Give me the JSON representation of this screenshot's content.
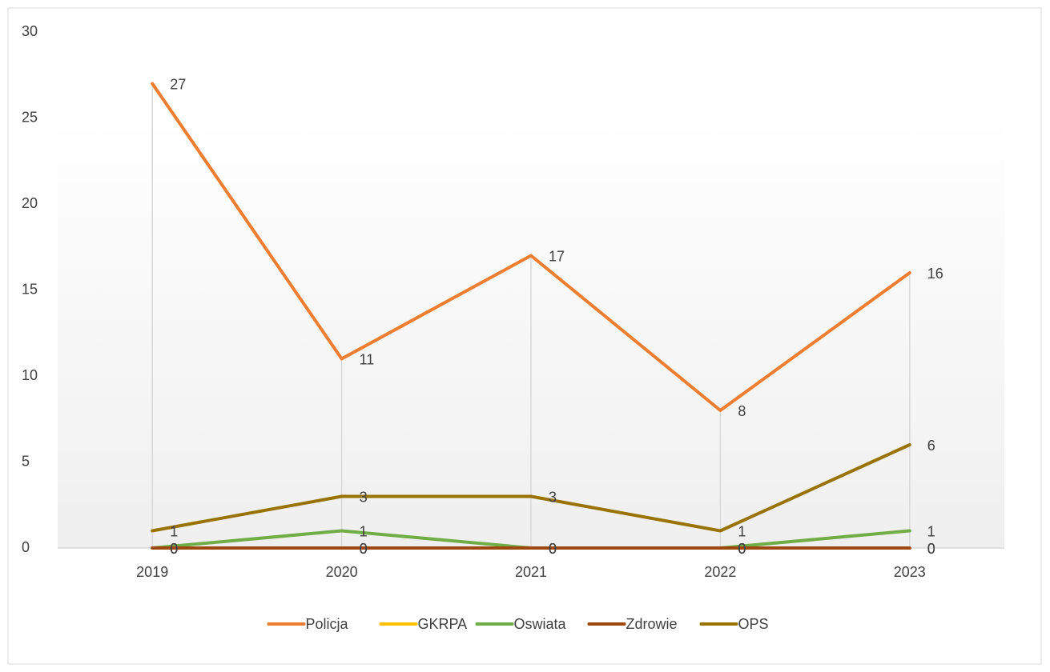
{
  "chart_data": {
    "type": "line",
    "categories": [
      "2019",
      "2020",
      "2021",
      "2022",
      "2023"
    ],
    "series": [
      {
        "name": "Policja",
        "color": "#ED7D31",
        "label_color": "#ED7D31",
        "values": [
          27,
          11,
          17,
          8,
          16
        ]
      },
      {
        "name": "GKRPA",
        "color": "#FFC000",
        "label_color": "#595959",
        "values": [
          0,
          0,
          0,
          0,
          0
        ]
      },
      {
        "name": "Oswiata",
        "color": "#70AD47",
        "label_color": "#595959",
        "values": [
          0,
          1,
          0,
          0,
          1
        ]
      },
      {
        "name": "Zdrowie",
        "color": "#9E480E",
        "label_color": "#595959",
        "values": [
          0,
          0,
          0,
          0,
          0
        ]
      },
      {
        "name": "OPS",
        "color": "#997300",
        "label_color": "#7030A0",
        "values": [
          1,
          3,
          3,
          1,
          6
        ]
      }
    ],
    "ylim": [
      0,
      30
    ],
    "yticks": [
      0,
      5,
      10,
      15,
      20,
      25,
      30
    ],
    "grid": false,
    "drop_lines": true,
    "legend": "bottom"
  }
}
